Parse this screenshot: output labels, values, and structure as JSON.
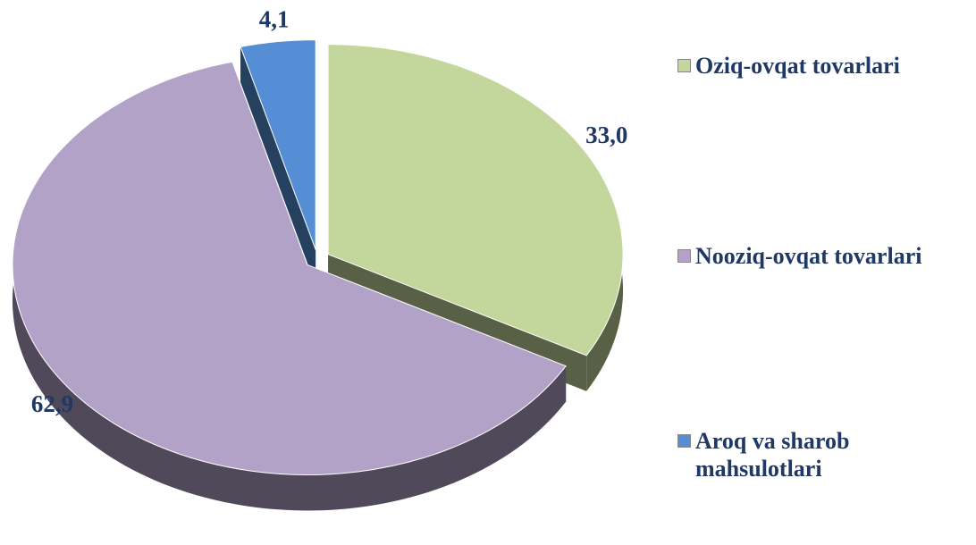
{
  "chart_data": {
    "type": "pie",
    "categories": [
      "Oziq-ovqat tovarlari",
      "Nooziq-ovqat tovarlari",
      "Aroq va sharob mahsulotlari"
    ],
    "values": [
      33.0,
      62.9,
      4.1
    ],
    "value_labels": [
      "33,0",
      "62,9",
      "4,1"
    ],
    "colors": [
      "#c3d69b",
      "#b2a2c7",
      "#558ed5"
    ],
    "legend": "right"
  }
}
